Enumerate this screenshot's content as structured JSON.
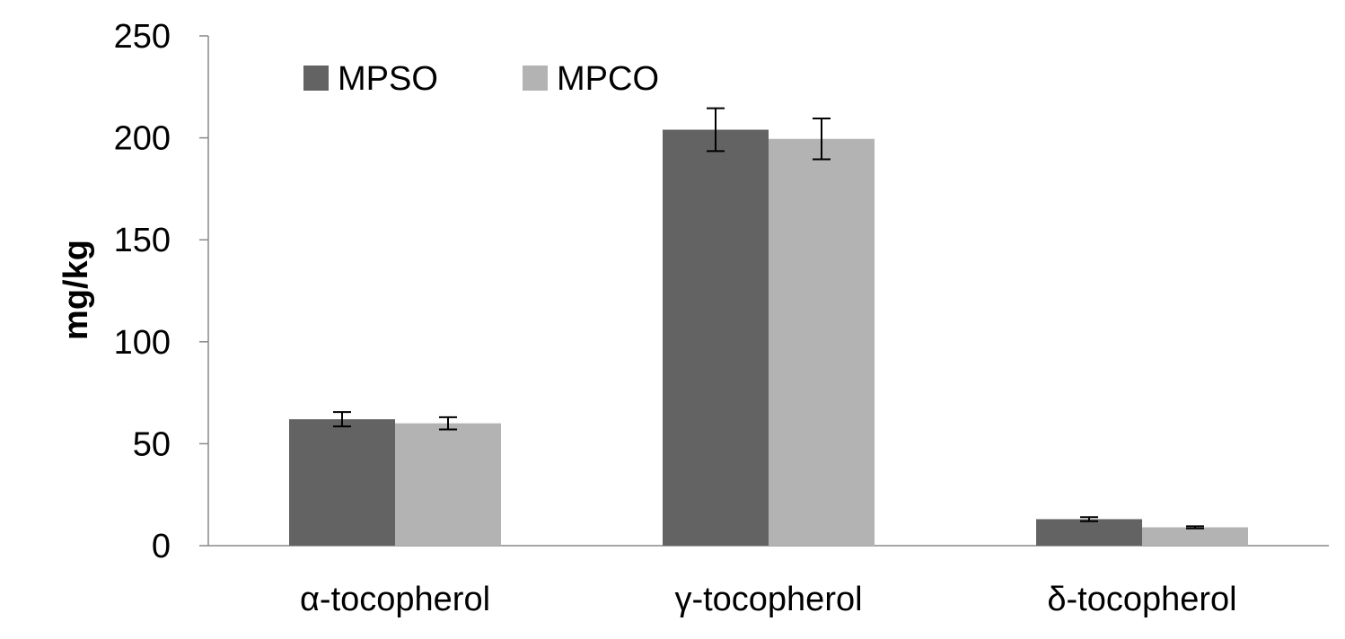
{
  "chart_data": {
    "type": "bar",
    "title": "",
    "xlabel": "",
    "ylabel": "mg/kg",
    "ylim": [
      0,
      250
    ],
    "yticks": [
      0,
      50,
      100,
      150,
      200,
      250
    ],
    "categories": [
      "α-tocopherol",
      "γ-tocopherol",
      "δ-tocopherol"
    ],
    "series": [
      {
        "name": "MPSO",
        "color": "#636363",
        "values": [
          62,
          204,
          13
        ],
        "errors": [
          3.5,
          10.5,
          1
        ]
      },
      {
        "name": "MPCO",
        "color": "#b3b3b3",
        "values": [
          60,
          199.5,
          9
        ],
        "errors": [
          3,
          10,
          0.5
        ]
      }
    ],
    "grid": false,
    "legend": "top-left",
    "error_bars": true
  }
}
